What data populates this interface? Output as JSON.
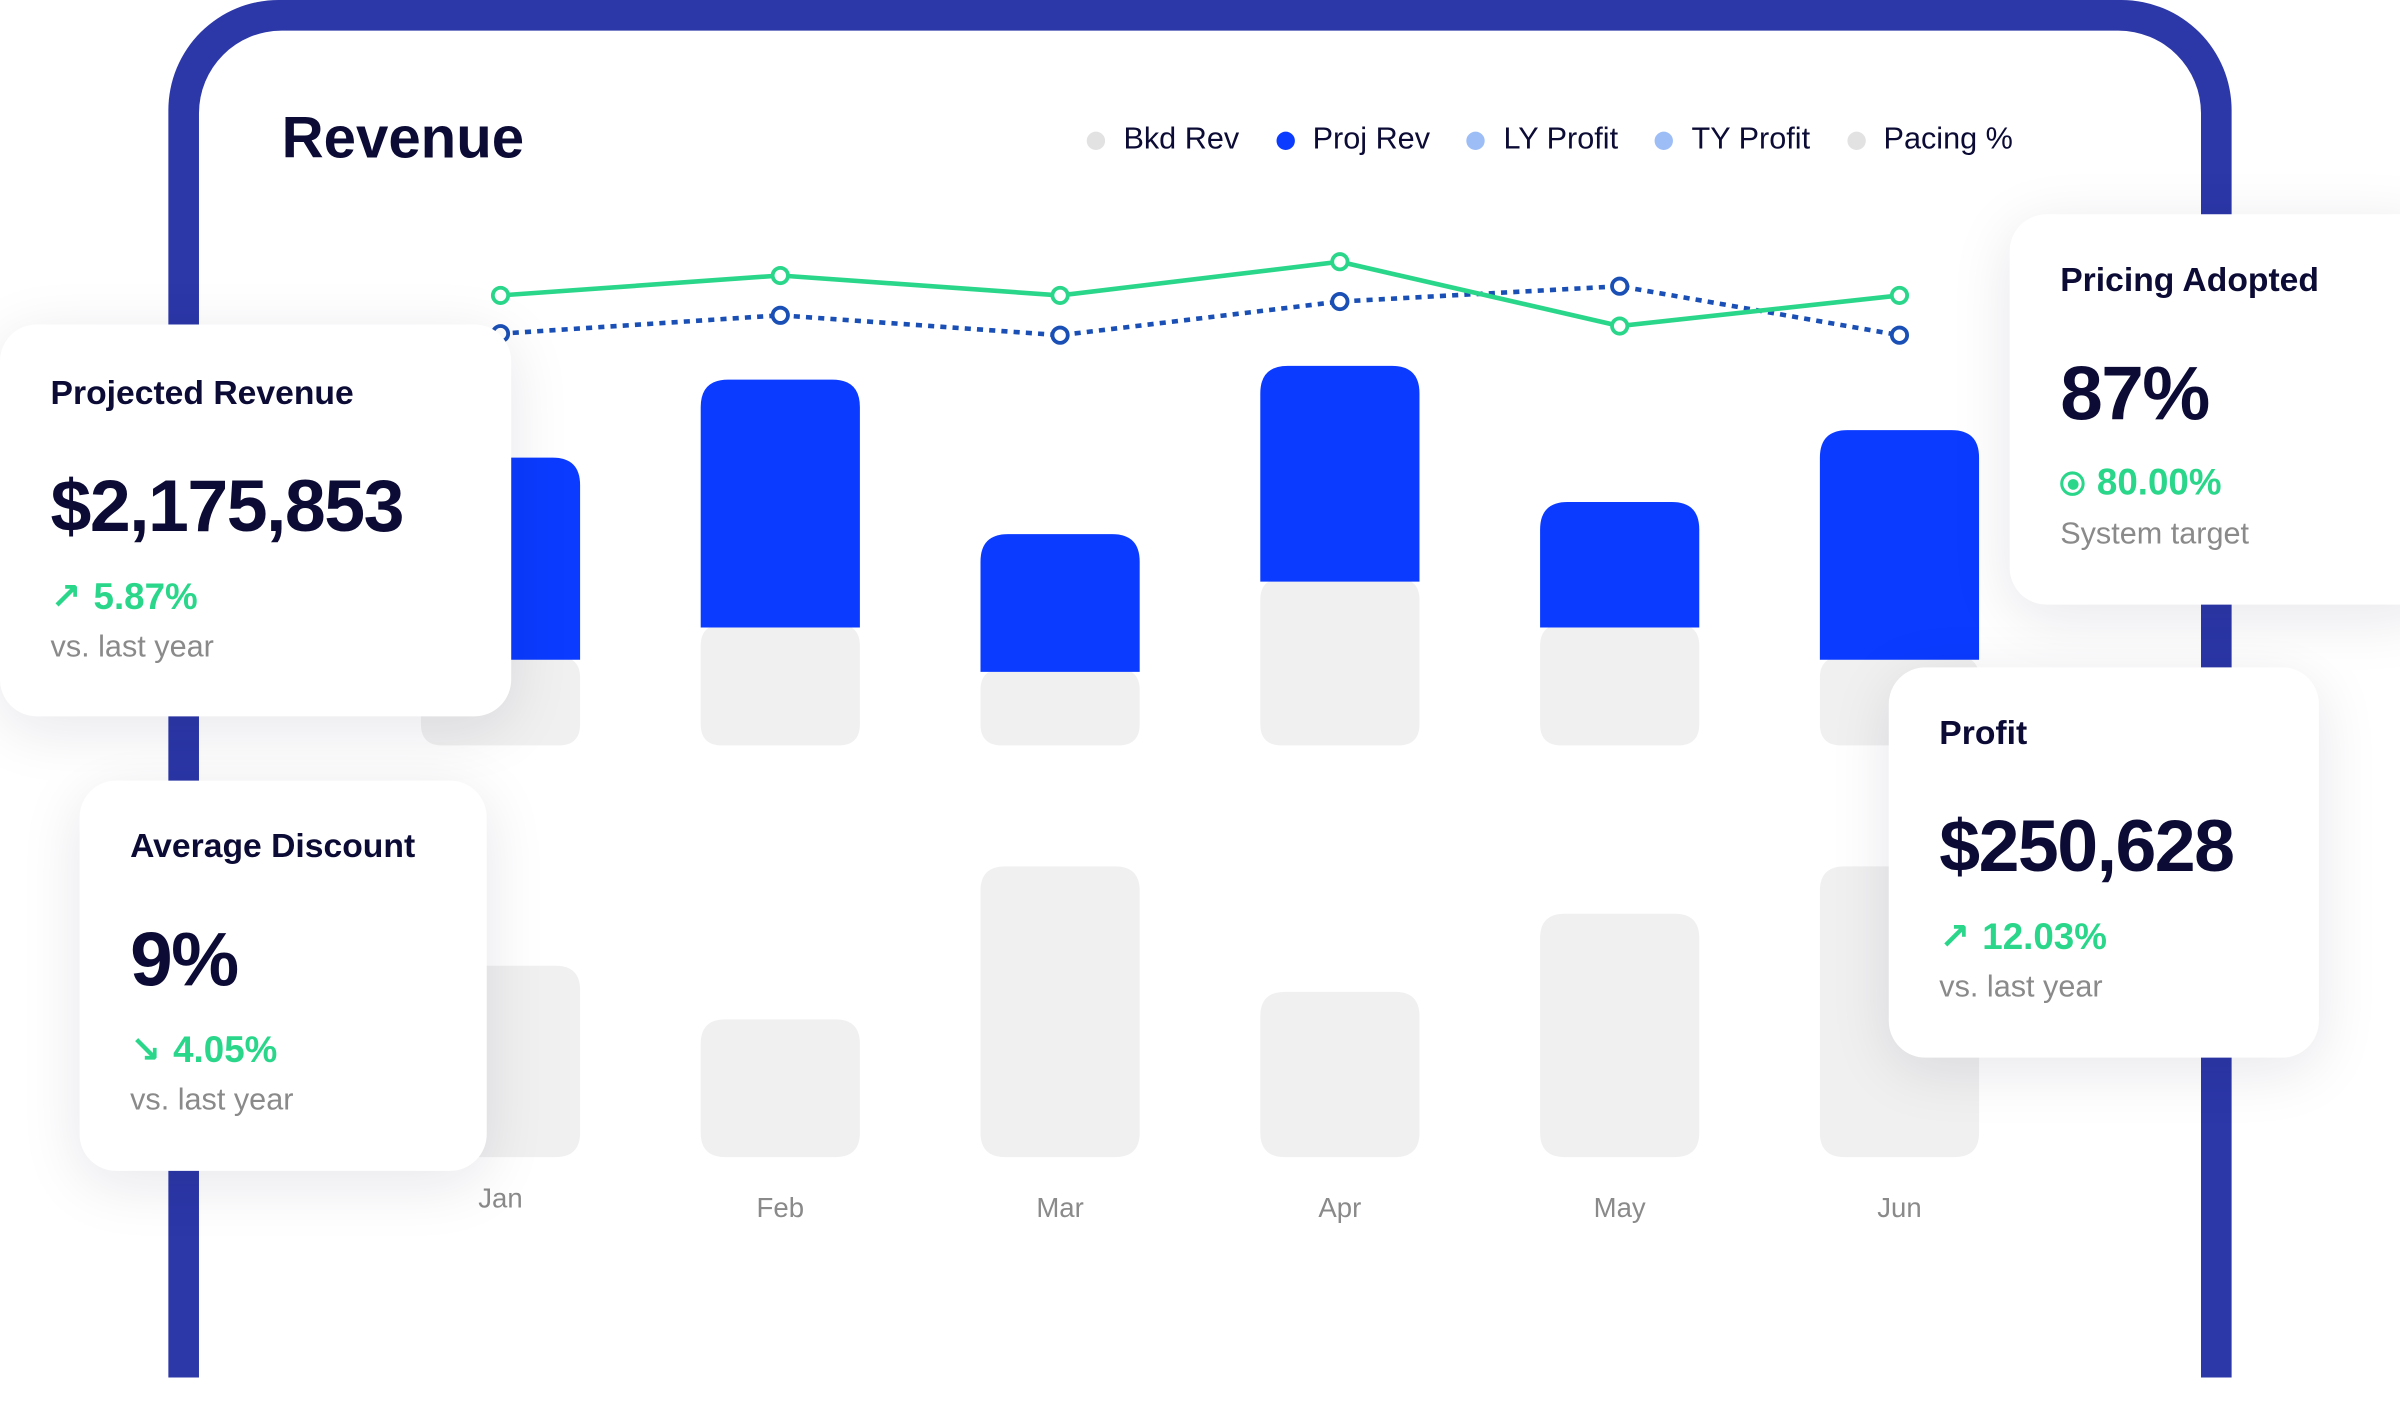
{
  "colors": {
    "frame": "#2c37a8",
    "bkd": "#f0f0f0",
    "proj": "#0b3bff",
    "green": "#2ad68a",
    "blue_line": "#1a4fb5",
    "text": "#0b0b35",
    "muted": "#8a8a8a"
  },
  "legend": [
    {
      "label": "Bkd Rev",
      "color": "#e2e2e2"
    },
    {
      "label": "Proj Rev",
      "color": "#0b3bff"
    },
    {
      "label": "LY Profit",
      "color": "#9dbdf7"
    },
    {
      "label": "TY Profit",
      "color": "#9dbdf7"
    },
    {
      "label": "Pacing %",
      "color": "#e2e2e2"
    }
  ],
  "chart_data": {
    "type": "bar",
    "title": "Revenue",
    "categories": [
      "Jan",
      "Feb",
      "Mar",
      "Apr",
      "May",
      "Jun"
    ],
    "series": [
      {
        "name": "Proj Rev",
        "kind": "stacked-bar-top",
        "values": [
          132,
          162,
          90,
          141,
          82,
          150
        ]
      },
      {
        "name": "Bkd Rev",
        "kind": "stacked-bar-bottom",
        "values": [
          56,
          77,
          48,
          107,
          77,
          56
        ]
      },
      {
        "name": "Pacing %",
        "kind": "bar-lower",
        "values": [
          125,
          90,
          190,
          108,
          159,
          190
        ]
      },
      {
        "name": "LY Profit",
        "kind": "line-solid",
        "values": [
          47,
          60,
          47,
          69,
          27,
          47
        ]
      },
      {
        "name": "TY Profit",
        "kind": "line-dotted",
        "values": [
          22,
          34,
          21,
          43,
          53,
          21
        ]
      }
    ],
    "legend_position": "top-right",
    "grid": false
  },
  "cards": {
    "projected": {
      "title": "Projected Revenue",
      "value": "$2,175,853",
      "trend": "5.87%",
      "trend_dir": "up",
      "sub": "vs. last year"
    },
    "discount": {
      "title": "Average Discount",
      "value": "9%",
      "trend": "4.05%",
      "trend_dir": "down",
      "sub": "vs. last year"
    },
    "pricing": {
      "title": "Pricing Adopted",
      "value": "87%",
      "trend": "80.00%",
      "sub": "System target"
    },
    "profit": {
      "title": "Profit",
      "value": "$250,628",
      "trend": "12.03%",
      "trend_dir": "up",
      "sub": "vs. last year"
    }
  }
}
